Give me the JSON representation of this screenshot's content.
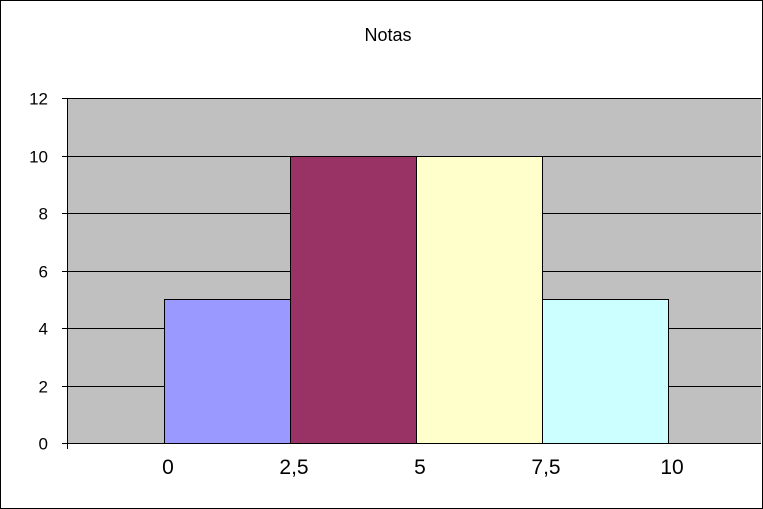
{
  "chart_data": {
    "type": "bar",
    "title": "Notas",
    "xlabel": "",
    "ylabel": "",
    "x_tick_labels": [
      "0",
      "2,5",
      "5",
      "7,5",
      "10"
    ],
    "ylim": [
      0,
      12
    ],
    "y_ticks": [
      "0",
      "2",
      "4",
      "6",
      "8",
      "10",
      "12"
    ],
    "grid": true,
    "legend": "none",
    "plot_background": "#c0c0c0",
    "bars": [
      {
        "x_start": 0,
        "x_end": 2.5,
        "value": 5,
        "color": "#9999ff"
      },
      {
        "x_start": 2.5,
        "x_end": 5,
        "value": 10,
        "color": "#993366"
      },
      {
        "x_start": 5,
        "x_end": 7.5,
        "value": 10,
        "color": "#ffffcc"
      },
      {
        "x_start": 7.5,
        "x_end": 10,
        "value": 5,
        "color": "#ccffff"
      }
    ]
  }
}
